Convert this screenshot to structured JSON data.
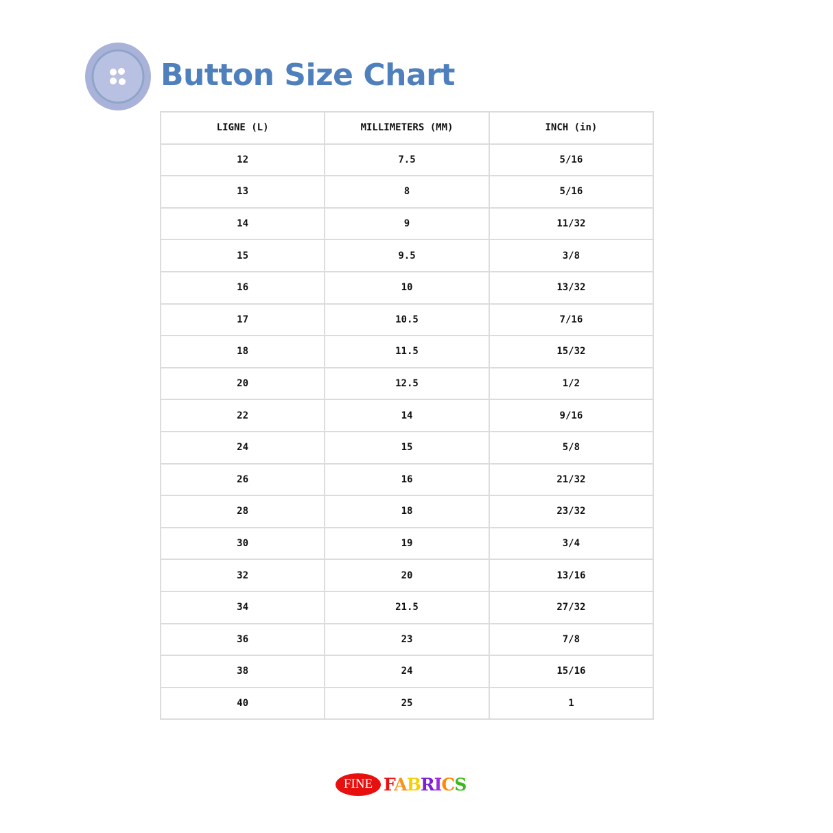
{
  "header": {
    "title": "Button Size Chart"
  },
  "table": {
    "columns": [
      "LIGNE (L)",
      "MILLIMETERS (MM)",
      "INCH (in)"
    ],
    "rows": [
      [
        "12",
        "7.5",
        "5/16"
      ],
      [
        "13",
        "8",
        "5/16"
      ],
      [
        "14",
        "9",
        "11/32"
      ],
      [
        "15",
        "9.5",
        "3/8"
      ],
      [
        "16",
        "10",
        "13/32"
      ],
      [
        "17",
        "10.5",
        "7/16"
      ],
      [
        "18",
        "11.5",
        "15/32"
      ],
      [
        "20",
        "12.5",
        "1/2"
      ],
      [
        "22",
        "14",
        "9/16"
      ],
      [
        "24",
        "15",
        "5/8"
      ],
      [
        "26",
        "16",
        "21/32"
      ],
      [
        "28",
        "18",
        "23/32"
      ],
      [
        "30",
        "19",
        "3/4"
      ],
      [
        "32",
        "20",
        "13/16"
      ],
      [
        "34",
        "21.5",
        "27/32"
      ],
      [
        "36",
        "23",
        "7/8"
      ],
      [
        "38",
        "24",
        "15/16"
      ],
      [
        "40",
        "25",
        "1"
      ]
    ]
  },
  "logo": {
    "text": "FINE FABRICS",
    "fine": "FINE",
    "fabrics": "FABRICS",
    "letter_colors": [
      "#e8100f",
      "#f7931e",
      "#f5d000",
      "#7a1fd6",
      "#9a2be0",
      "#ff8a00",
      "#3cb81c"
    ]
  },
  "colors": {
    "title": "#4f80bd",
    "button": "#aab3d8"
  }
}
